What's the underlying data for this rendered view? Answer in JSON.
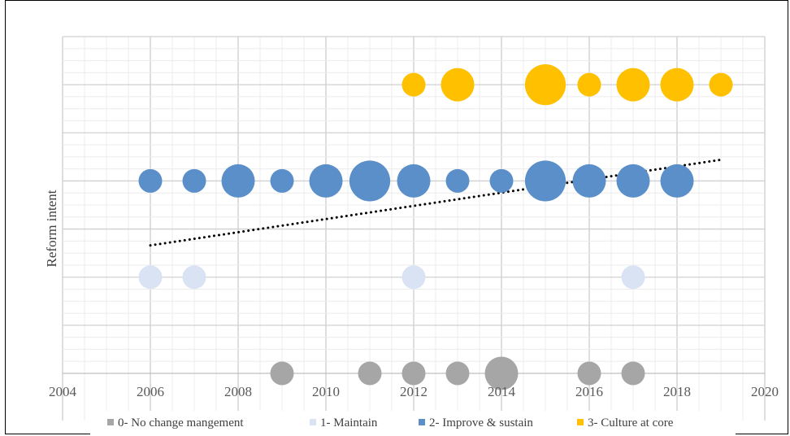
{
  "chart_data": {
    "type": "scatter",
    "subtype": "bubble",
    "title": "",
    "xlabel": "",
    "ylabel": "Reform intent",
    "xlim": [
      2004,
      2020
    ],
    "x_ticks": [
      2004,
      2006,
      2008,
      2010,
      2012,
      2014,
      2016,
      2018,
      2020
    ],
    "ylim": [
      0,
      3.5
    ],
    "grid": true,
    "legend_position": "bottom",
    "series": [
      {
        "name": "0- No change mangement",
        "color": "#a6a6a6",
        "y": 0,
        "points": [
          {
            "x": 2009,
            "size": 2
          },
          {
            "x": 2011,
            "size": 2
          },
          {
            "x": 2012,
            "size": 2
          },
          {
            "x": 2013,
            "size": 2
          },
          {
            "x": 2014,
            "size": 4
          },
          {
            "x": 2016,
            "size": 2
          },
          {
            "x": 2017,
            "size": 2
          }
        ]
      },
      {
        "name": "1- Maintain",
        "color": "#dae3f3",
        "y": 1,
        "points": [
          {
            "x": 2006,
            "size": 2
          },
          {
            "x": 2007,
            "size": 2
          },
          {
            "x": 2012,
            "size": 2
          },
          {
            "x": 2017,
            "size": 2
          }
        ]
      },
      {
        "name": "2- Improve & sustain",
        "color": "#5b8fc9",
        "y": 2,
        "points": [
          {
            "x": 2006,
            "size": 2
          },
          {
            "x": 2007,
            "size": 2
          },
          {
            "x": 2008,
            "size": 4
          },
          {
            "x": 2009,
            "size": 2
          },
          {
            "x": 2010,
            "size": 4
          },
          {
            "x": 2011,
            "size": 6
          },
          {
            "x": 2012,
            "size": 4
          },
          {
            "x": 2013,
            "size": 2
          },
          {
            "x": 2014,
            "size": 2
          },
          {
            "x": 2015,
            "size": 6
          },
          {
            "x": 2016,
            "size": 4
          },
          {
            "x": 2017,
            "size": 4
          },
          {
            "x": 2018,
            "size": 4
          }
        ]
      },
      {
        "name": "3- Culture at core",
        "color": "#ffc000",
        "y": 3,
        "points": [
          {
            "x": 2012,
            "size": 2
          },
          {
            "x": 2013,
            "size": 4
          },
          {
            "x": 2015,
            "size": 6
          },
          {
            "x": 2016,
            "size": 2
          },
          {
            "x": 2017,
            "size": 4
          },
          {
            "x": 2018,
            "size": 4
          },
          {
            "x": 2019,
            "size": 2
          }
        ]
      }
    ],
    "trendline": {
      "style": "dotted",
      "color": "#000000",
      "from": {
        "x": 2006,
        "y": 1.33
      },
      "to": {
        "x": 2019,
        "y": 2.22
      }
    }
  }
}
